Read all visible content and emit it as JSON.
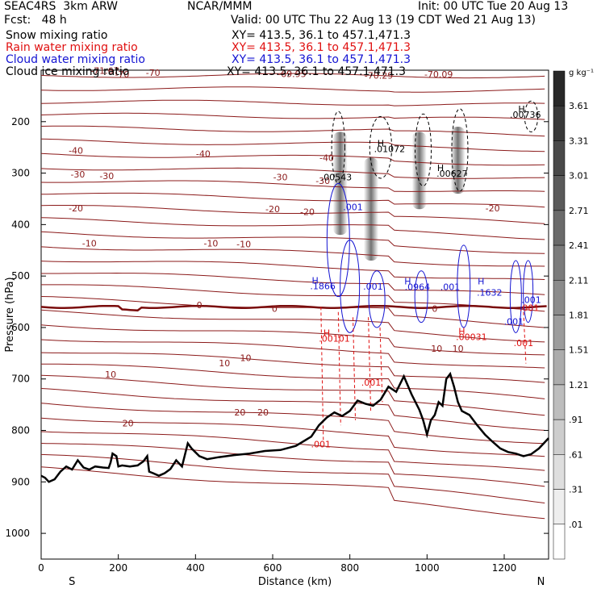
{
  "header": {
    "model": "SEAC4RS  3km ARW",
    "org": "NCAR/MMM",
    "init": "Init: 00 UTC Tue 20 Aug 13",
    "fcst": "Fcst:   48 h",
    "valid": "Valid: 00 UTC Thu 22 Aug 13 (19 CDT Wed 21 Aug 13)",
    "fields": [
      {
        "name": "Snow mixing ratio",
        "color": "#000000",
        "xy": "XY= 413.5, 36.1 to 457.1,471.3"
      },
      {
        "name": "Rain water mixing ratio",
        "color": "#e01010",
        "xy": "XY= 413.5, 36.1 to 457.1,471.3"
      },
      {
        "name": "Cloud water mixing ratio",
        "color": "#1414d2",
        "xy": "XY= 413.5, 36.1 to 457.1,471.3"
      },
      {
        "name": "Cloud ice mixing ratio",
        "color": "#000000",
        "xy": "XY= 413.5, 36.1 to 457.1,471.3"
      }
    ]
  },
  "chart_data": {
    "type": "contour",
    "xlabel": "Distance (km)",
    "ylabel": "Pressure (hPa)",
    "xlim": [
      0,
      1315
    ],
    "ylim": [
      1050,
      100
    ],
    "x_ticks": [
      0,
      200,
      400,
      600,
      800,
      1000,
      1200
    ],
    "y_ticks": [
      200,
      300,
      400,
      500,
      600,
      700,
      800,
      900,
      1000
    ],
    "end_labels": {
      "left": "S",
      "right": "N"
    },
    "colorbar": {
      "units": "g kg⁻¹",
      "levels": [
        ".01",
        ".31",
        ".61",
        ".91",
        "1.21",
        "1.51",
        "1.81",
        "2.11",
        "2.41",
        "2.71",
        "3.01",
        "3.31",
        "3.61"
      ]
    },
    "temperature_contours": [
      {
        "label": "-71.67",
        "x": 165,
        "p": 101
      },
      {
        "label": "-70",
        "x": 210,
        "p": 108
      },
      {
        "label": "-70",
        "x": 290,
        "p": 105
      },
      {
        "label": "-69.95",
        "x": 650,
        "p": 107
      },
      {
        "label": "-70.29",
        "x": 875,
        "p": 110
      },
      {
        "label": "-70.09",
        "x": 1030,
        "p": 108
      },
      {
        "label": "-40",
        "x": 90,
        "p": 256
      },
      {
        "label": "-40",
        "x": 420,
        "p": 262
      },
      {
        "label": "-40",
        "x": 740,
        "p": 270
      },
      {
        "label": "-30",
        "x": 95,
        "p": 302
      },
      {
        "label": "-30",
        "x": 170,
        "p": 305
      },
      {
        "label": "-30",
        "x": 620,
        "p": 308
      },
      {
        "label": "-30",
        "x": 730,
        "p": 315
      },
      {
        "label": "-20",
        "x": 90,
        "p": 368
      },
      {
        "label": "-20",
        "x": 600,
        "p": 370
      },
      {
        "label": "-20",
        "x": 690,
        "p": 375
      },
      {
        "label": "-20",
        "x": 1170,
        "p": 368
      },
      {
        "label": "-10",
        "x": 125,
        "p": 436
      },
      {
        "label": "-10",
        "x": 440,
        "p": 436
      },
      {
        "label": "-10",
        "x": 525,
        "p": 438
      },
      {
        "label": "0",
        "x": 410,
        "p": 556
      },
      {
        "label": "0",
        "x": 605,
        "p": 563
      },
      {
        "label": "0",
        "x": 1020,
        "p": 563
      },
      {
        "label": "10",
        "x": 530,
        "p": 659
      },
      {
        "label": "10",
        "x": 1025,
        "p": 641
      },
      {
        "label": "10",
        "x": 1080,
        "p": 641
      },
      {
        "label": "10",
        "x": 180,
        "p": 691
      },
      {
        "label": "10",
        "x": 475,
        "p": 669
      },
      {
        "label": "20",
        "x": 225,
        "p": 786
      },
      {
        "label": "20",
        "x": 515,
        "p": 765
      },
      {
        "label": "20",
        "x": 575,
        "p": 765
      }
    ],
    "field_labels": [
      {
        "text": "H",
        "field": "snow",
        "x": 1245,
        "p": 175
      },
      {
        "text": ".00736",
        "field": "snow",
        "x": 1255,
        "p": 186
      },
      {
        "text": "H",
        "field": "snow",
        "x": 880,
        "p": 242
      },
      {
        "text": ".01072",
        "field": "snow",
        "x": 903,
        "p": 253
      },
      {
        "text": "H",
        "field": "snow",
        "x": 1035,
        "p": 290
      },
      {
        "text": ".00627",
        "field": "snow",
        "x": 1065,
        "p": 301
      },
      {
        "text": ".00543",
        "field": "snow",
        "x": 765,
        "p": 308
      },
      {
        "text": ".001",
        "field": "cloud",
        "x": 808,
        "p": 366
      },
      {
        "text": "H",
        "field": "cloud",
        "x": 710,
        "p": 508
      },
      {
        "text": ".1866",
        "field": "cloud",
        "x": 730,
        "p": 519
      },
      {
        "text": ".001",
        "field": "cloud",
        "x": 860,
        "p": 520
      },
      {
        "text": "H",
        "field": "cloud",
        "x": 950,
        "p": 510
      },
      {
        "text": ".0964",
        "field": "cloud",
        "x": 975,
        "p": 521
      },
      {
        "text": ".001",
        "field": "cloud",
        "x": 1060,
        "p": 521
      },
      {
        "text": "H",
        "field": "cloud",
        "x": 1140,
        "p": 510
      },
      {
        "text": ".1632",
        "field": "cloud",
        "x": 1162,
        "p": 532
      },
      {
        "text": ".001",
        "field": "cloud",
        "x": 1270,
        "p": 546
      },
      {
        "text": ".001",
        "field": "cloud",
        "x": 1225,
        "p": 588
      },
      {
        "text": "H",
        "field": "rain",
        "x": 740,
        "p": 610
      },
      {
        "text": ".00101",
        "field": "rain",
        "x": 760,
        "p": 621
      },
      {
        "text": "H",
        "field": "rain",
        "x": 1090,
        "p": 607
      },
      {
        "text": ".00031",
        "field": "rain",
        "x": 1115,
        "p": 618
      },
      {
        "text": ".001",
        "field": "rain",
        "x": 1265,
        "p": 562
      },
      {
        "text": ".001",
        "field": "rain",
        "x": 1250,
        "p": 630
      },
      {
        "text": ".001",
        "field": "rain",
        "x": 855,
        "p": 707
      },
      {
        "text": ".001",
        "field": "rain",
        "x": 725,
        "p": 827
      }
    ],
    "terrain_pressure": [
      [
        0,
        888
      ],
      [
        10,
        892
      ],
      [
        20,
        900
      ],
      [
        35,
        895
      ],
      [
        50,
        880
      ],
      [
        65,
        870
      ],
      [
        80,
        876
      ],
      [
        95,
        858
      ],
      [
        110,
        872
      ],
      [
        125,
        876
      ],
      [
        140,
        870
      ],
      [
        160,
        872
      ],
      [
        175,
        873
      ],
      [
        180,
        862
      ],
      [
        185,
        845
      ],
      [
        195,
        850
      ],
      [
        200,
        870
      ],
      [
        210,
        868
      ],
      [
        230,
        870
      ],
      [
        250,
        868
      ],
      [
        265,
        860
      ],
      [
        275,
        850
      ],
      [
        280,
        880
      ],
      [
        290,
        883
      ],
      [
        305,
        888
      ],
      [
        320,
        883
      ],
      [
        335,
        875
      ],
      [
        350,
        858
      ],
      [
        365,
        870
      ],
      [
        375,
        840
      ],
      [
        380,
        825
      ],
      [
        390,
        835
      ],
      [
        410,
        850
      ],
      [
        430,
        856
      ],
      [
        460,
        852
      ],
      [
        500,
        848
      ],
      [
        540,
        845
      ],
      [
        580,
        840
      ],
      [
        620,
        838
      ],
      [
        660,
        830
      ],
      [
        700,
        812
      ],
      [
        720,
        790
      ],
      [
        740,
        775
      ],
      [
        760,
        765
      ],
      [
        780,
        772
      ],
      [
        800,
        762
      ],
      [
        820,
        742
      ],
      [
        840,
        748
      ],
      [
        860,
        752
      ],
      [
        880,
        740
      ],
      [
        900,
        715
      ],
      [
        920,
        725
      ],
      [
        940,
        695
      ],
      [
        960,
        730
      ],
      [
        980,
        760
      ],
      [
        990,
        780
      ],
      [
        1000,
        808
      ],
      [
        1010,
        780
      ],
      [
        1020,
        770
      ],
      [
        1030,
        745
      ],
      [
        1040,
        752
      ],
      [
        1050,
        700
      ],
      [
        1060,
        690
      ],
      [
        1070,
        715
      ],
      [
        1080,
        745
      ],
      [
        1090,
        762
      ],
      [
        1110,
        770
      ],
      [
        1130,
        790
      ],
      [
        1150,
        808
      ],
      [
        1170,
        822
      ],
      [
        1190,
        835
      ],
      [
        1210,
        842
      ],
      [
        1230,
        845
      ],
      [
        1250,
        850
      ],
      [
        1270,
        846
      ],
      [
        1290,
        835
      ],
      [
        1315,
        815
      ]
    ]
  }
}
